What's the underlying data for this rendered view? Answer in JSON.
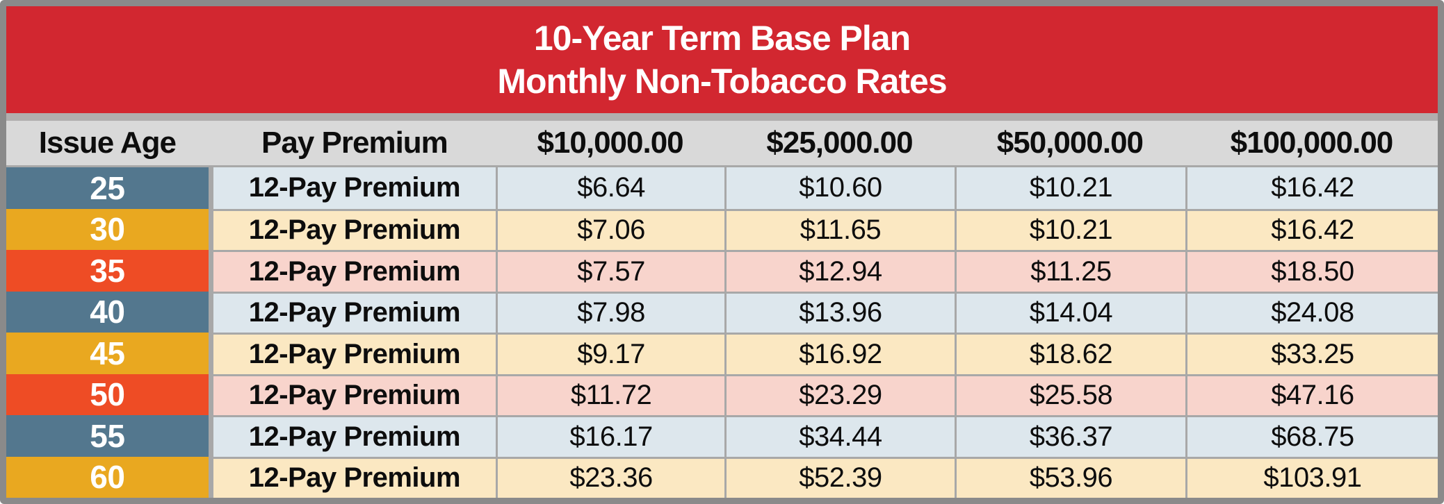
{
  "colors": {
    "title-red": "#d22730",
    "frame-gray": "#8a8a8a",
    "strip-gray": "#b1aeae",
    "gap-gray": "#a8a8a8",
    "header-gray": "#d9d9d9",
    "age-blue": "#53778e",
    "age-gold": "#e9a820",
    "age-red": "#ee4c25",
    "row-blue": "#dde7ed",
    "row-gold": "#fbe8c2",
    "row-red": "#f8d4cc",
    "title-text": "#ffffff",
    "body-text": "#0d0d0d"
  },
  "title": {
    "line1": "10-Year Term Base Plan",
    "line2": "Monthly Non-Tobacco Rates"
  },
  "header": {
    "issue_age": "Issue Age",
    "pay_premium": "Pay Premium",
    "col_10k": "$10,000.00",
    "col_25k": "$25,000.00",
    "col_50k": "$50,000.00",
    "col_100k": "$100,000.00"
  },
  "rows": [
    {
      "age": "25",
      "premium": "12-Pay Premium",
      "v10k": "$6.64",
      "v25k": "$10.60",
      "v50k": "$10.21",
      "v100k": "$16.42"
    },
    {
      "age": "30",
      "premium": "12-Pay Premium",
      "v10k": "$7.06",
      "v25k": "$11.65",
      "v50k": "$10.21",
      "v100k": "$16.42"
    },
    {
      "age": "35",
      "premium": "12-Pay Premium",
      "v10k": "$7.57",
      "v25k": "$12.94",
      "v50k": "$11.25",
      "v100k": "$18.50"
    },
    {
      "age": "40",
      "premium": "12-Pay Premium",
      "v10k": "$7.98",
      "v25k": "$13.96",
      "v50k": "$14.04",
      "v100k": "$24.08"
    },
    {
      "age": "45",
      "premium": "12-Pay Premium",
      "v10k": "$9.17",
      "v25k": "$16.92",
      "v50k": "$18.62",
      "v100k": "$33.25"
    },
    {
      "age": "50",
      "premium": "12-Pay Premium",
      "v10k": "$11.72",
      "v25k": "$23.29",
      "v50k": "$25.58",
      "v100k": "$47.16"
    },
    {
      "age": "55",
      "premium": "12-Pay Premium",
      "v10k": "$16.17",
      "v25k": "$34.44",
      "v50k": "$36.37",
      "v100k": "$68.75"
    },
    {
      "age": "60",
      "premium": "12-Pay Premium",
      "v10k": "$23.36",
      "v25k": "$52.39",
      "v50k": "$53.96",
      "v100k": "$103.91"
    }
  ],
  "chart_data": {
    "type": "table",
    "title": "10-Year Term Base Plan — Monthly Non-Tobacco Rates",
    "columns": [
      "Issue Age",
      "Pay Premium",
      "$10,000.00",
      "$25,000.00",
      "$50,000.00",
      "$100,000.00"
    ],
    "rows": [
      [
        25,
        "12-Pay Premium",
        6.64,
        10.6,
        10.21,
        16.42
      ],
      [
        30,
        "12-Pay Premium",
        7.06,
        11.65,
        10.21,
        16.42
      ],
      [
        35,
        "12-Pay Premium",
        7.57,
        12.94,
        11.25,
        18.5
      ],
      [
        40,
        "12-Pay Premium",
        7.98,
        13.96,
        14.04,
        24.08
      ],
      [
        45,
        "12-Pay Premium",
        9.17,
        16.92,
        18.62,
        33.25
      ],
      [
        50,
        "12-Pay Premium",
        11.72,
        23.29,
        25.58,
        47.16
      ],
      [
        55,
        "12-Pay Premium",
        16.17,
        34.44,
        36.37,
        68.75
      ],
      [
        60,
        "12-Pay Premium",
        23.36,
        52.39,
        53.96,
        103.91
      ]
    ],
    "row_theme_cycle": [
      "blue",
      "gold",
      "red"
    ]
  }
}
